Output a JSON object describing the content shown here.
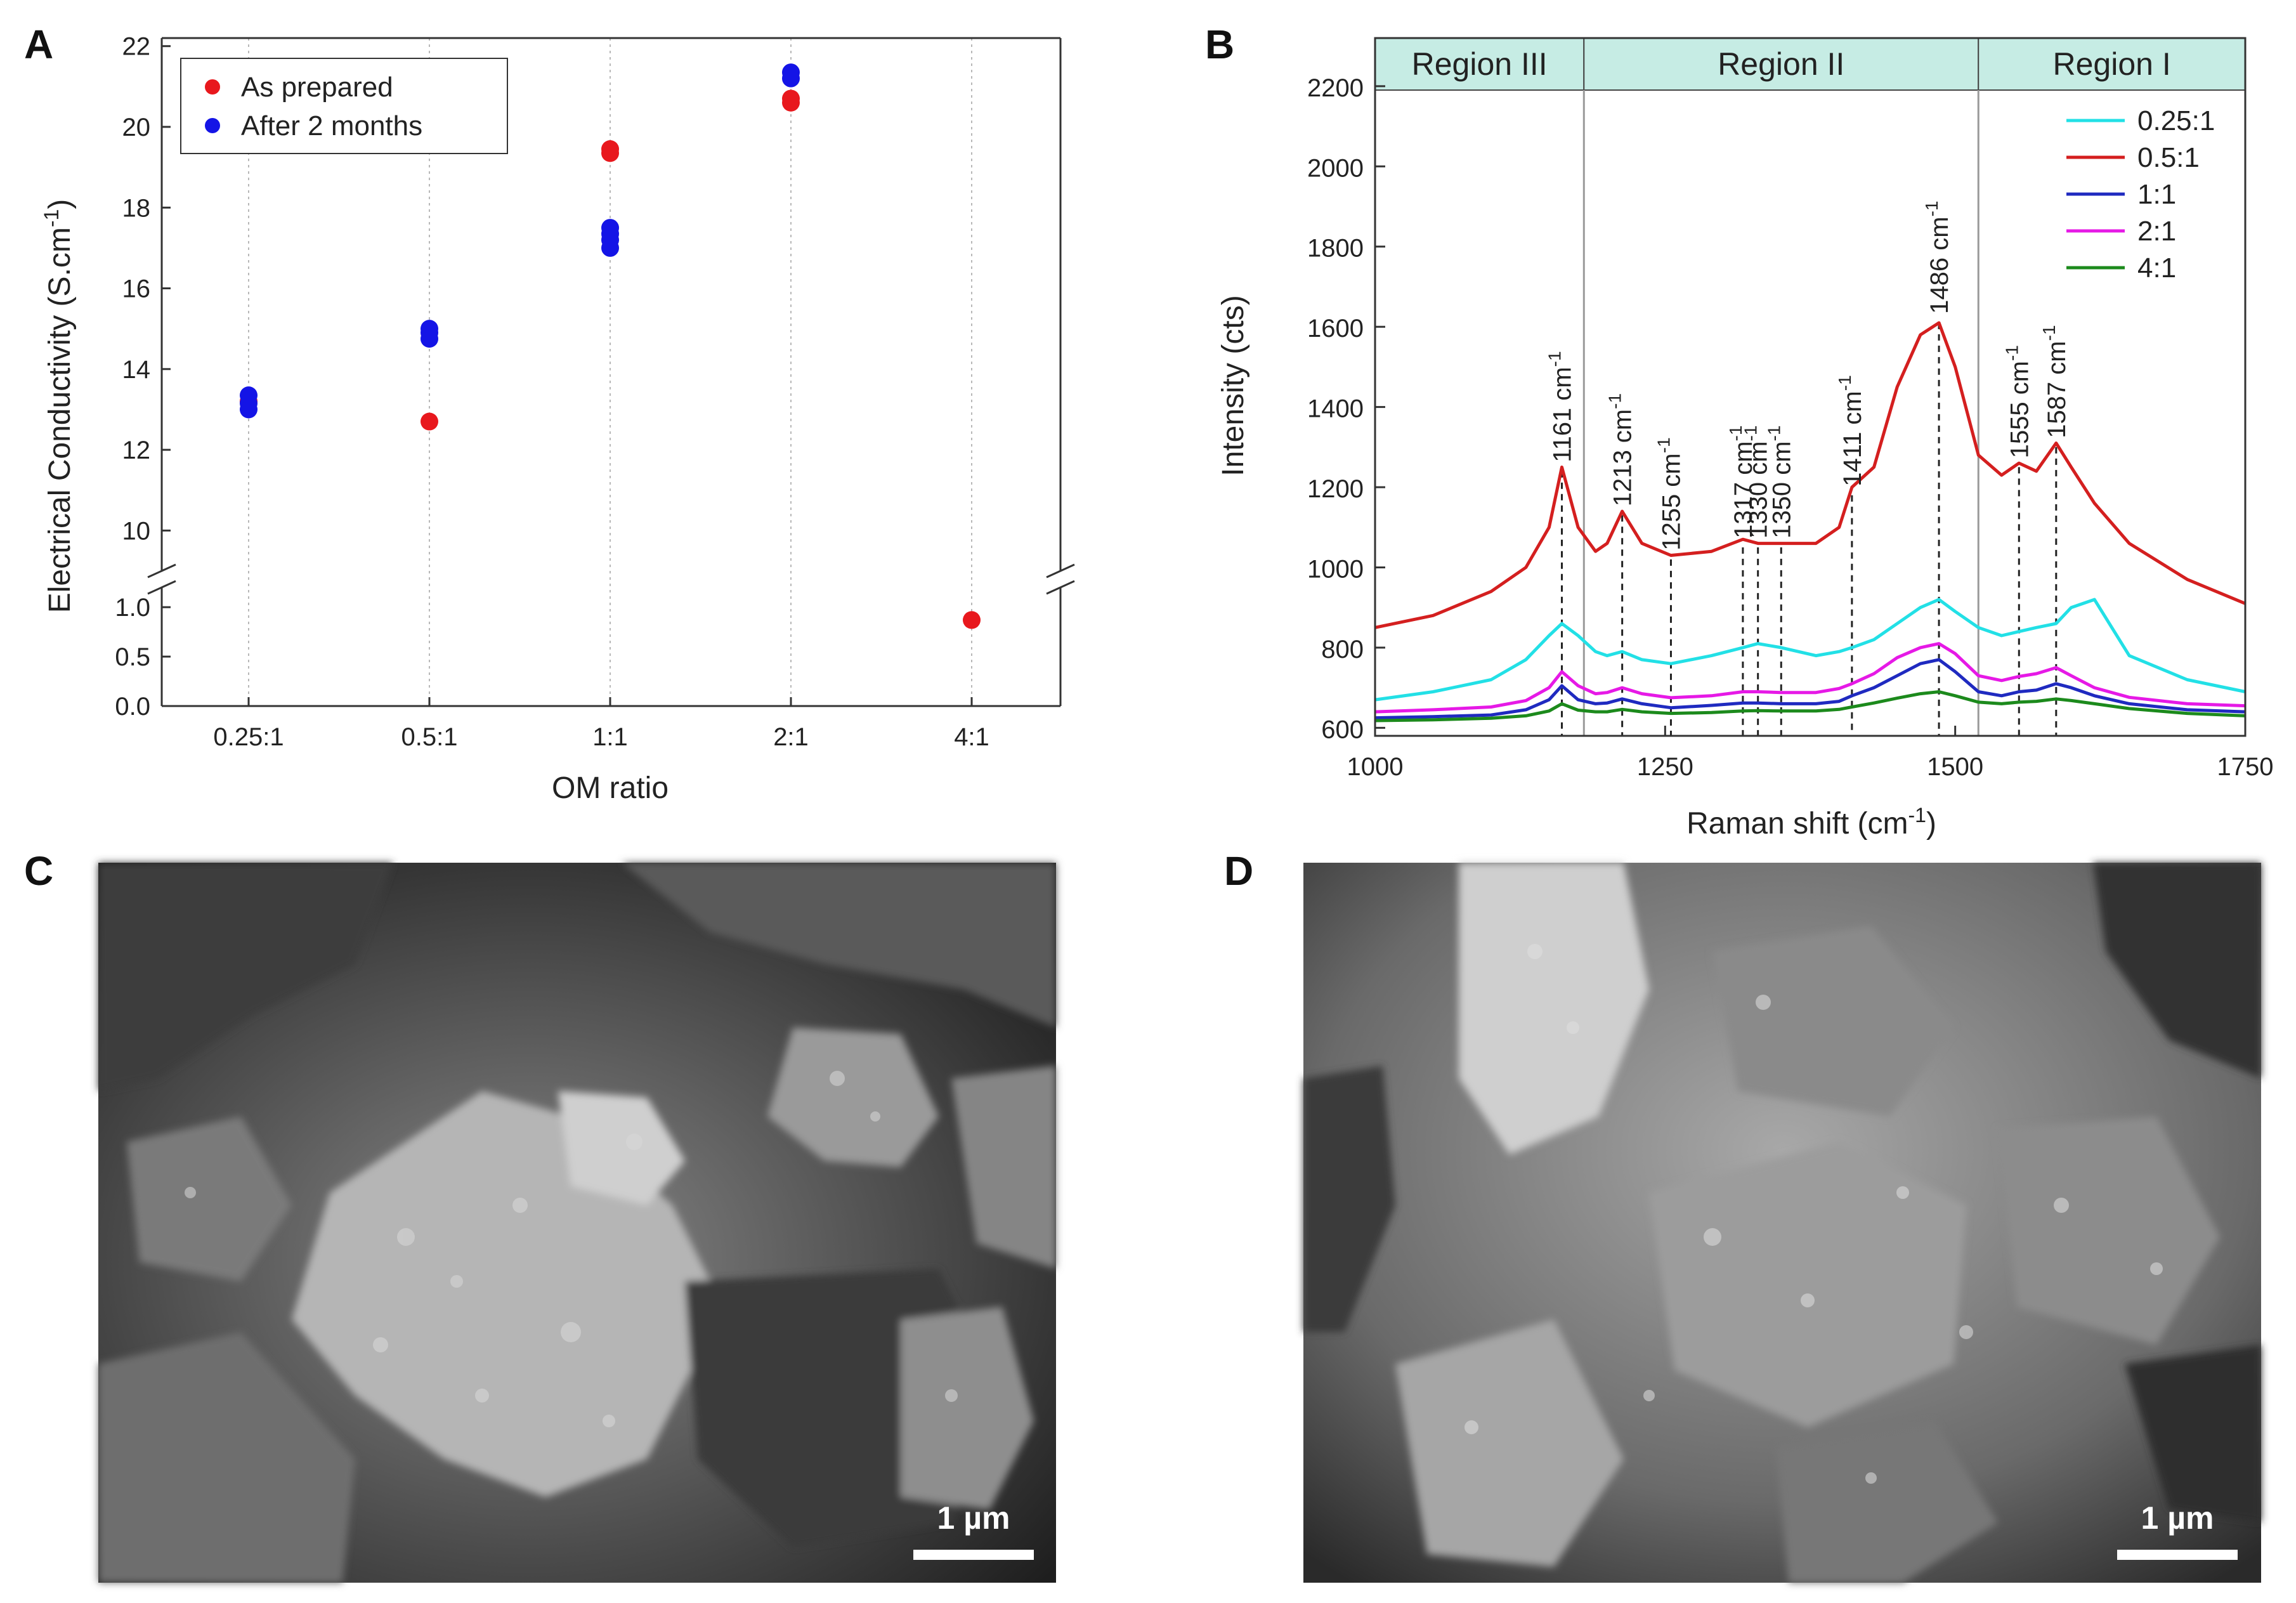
{
  "panel_letters": {
    "a": "A",
    "b": "B",
    "c": "C",
    "d": "D"
  },
  "chart_data": [
    {
      "id": "A",
      "type": "scatter",
      "title": "",
      "xlabel": "OM ratio",
      "ylabel": "Electrical Conductivity (S.cm",
      "ylabel_sup": "-1",
      "ylabel_end": ")",
      "categories": [
        "0.25:1",
        "0.5:1",
        "1:1",
        "2:1",
        "4:1"
      ],
      "ylim_upper": [
        9,
        22.2
      ],
      "ylim_lower": [
        0,
        1.2
      ],
      "yticks_upper": [
        "10",
        "12",
        "14",
        "16",
        "18",
        "20",
        "22"
      ],
      "yticks_lower": [
        "0.0",
        "0.5",
        "1.0"
      ],
      "grid": "vertical dotted at categories",
      "legend_position": "top-left",
      "series": [
        {
          "name": "As prepared",
          "color": "#e8181d",
          "points": [
            [
              0,
              13.2
            ],
            [
              1,
              12.7
            ],
            [
              2,
              19.35
            ],
            [
              2,
              19.45
            ],
            [
              3,
              20.6
            ],
            [
              3,
              20.7
            ],
            [
              4,
              0.87
            ]
          ]
        },
        {
          "name": "After 2 months",
          "color": "#1414e6",
          "points": [
            [
              0,
              13.0
            ],
            [
              0,
              13.15
            ],
            [
              0,
              13.35
            ],
            [
              1,
              14.75
            ],
            [
              1,
              14.9
            ],
            [
              1,
              15.0
            ],
            [
              2,
              17.0
            ],
            [
              2,
              17.2
            ],
            [
              2,
              17.35
            ],
            [
              2,
              17.5
            ],
            [
              3,
              21.2
            ],
            [
              3,
              21.35
            ]
          ]
        }
      ]
    },
    {
      "id": "B",
      "type": "line",
      "title": "",
      "xlabel": "Raman shift (cm",
      "xlabel_sup": "-1",
      "xlabel_end": ")",
      "ylabel": "Intensity (cts)",
      "xlim": [
        1000,
        1750
      ],
      "ylim": [
        580,
        2320
      ],
      "xticks": [
        1000,
        1250,
        1500,
        1750
      ],
      "yticks": [
        600,
        800,
        1000,
        1200,
        1400,
        1600,
        1800,
        2000,
        2200
      ],
      "legend_position": "top-right",
      "regions": [
        {
          "label": "Region III",
          "from": 1000,
          "to": 1180
        },
        {
          "label": "Region II",
          "from": 1180,
          "to": 1520
        },
        {
          "label": "Region I",
          "from": 1520,
          "to": 1750
        }
      ],
      "peaks": [
        {
          "pos": 1161,
          "label": "1161 cm",
          "sup": "-1"
        },
        {
          "pos": 1213,
          "label": "1213 cm",
          "sup": "-1"
        },
        {
          "pos": 1255,
          "label": "1255 cm",
          "sup": "-1"
        },
        {
          "pos": 1317,
          "label": "1317 cm",
          "sup": "-1"
        },
        {
          "pos": 1330,
          "label": "1330 cm",
          "sup": "-1"
        },
        {
          "pos": 1350,
          "label": "1350 cm",
          "sup": "-1"
        },
        {
          "pos": 1411,
          "label": "1411 cm",
          "sup": "-1"
        },
        {
          "pos": 1486,
          "label": "1486 cm",
          "sup": "-1"
        },
        {
          "pos": 1555,
          "label": "1555 cm",
          "sup": "-1"
        },
        {
          "pos": 1587,
          "label": "1587 cm",
          "sup": "-1"
        }
      ],
      "peak_line_tops": [
        1240,
        1130,
        1020,
        1050,
        1050,
        1050,
        1180,
        1610,
        1250,
        1300
      ],
      "x": [
        1000,
        1050,
        1100,
        1130,
        1150,
        1161,
        1175,
        1190,
        1200,
        1213,
        1230,
        1255,
        1290,
        1317,
        1330,
        1350,
        1380,
        1400,
        1411,
        1430,
        1450,
        1470,
        1486,
        1500,
        1520,
        1540,
        1555,
        1570,
        1587,
        1600,
        1620,
        1650,
        1700,
        1750
      ],
      "series": [
        {
          "name": "0.25:1",
          "color": "#22e0e6",
          "values": [
            670,
            690,
            720,
            770,
            830,
            860,
            830,
            790,
            780,
            790,
            770,
            760,
            780,
            800,
            810,
            800,
            780,
            790,
            800,
            820,
            860,
            900,
            920,
            890,
            850,
            830,
            840,
            850,
            860,
            900,
            920,
            780,
            720,
            690
          ]
        },
        {
          "name": "0.5:1",
          "color": "#d41f1f",
          "values": [
            850,
            880,
            940,
            1000,
            1100,
            1250,
            1100,
            1040,
            1060,
            1140,
            1060,
            1030,
            1040,
            1070,
            1060,
            1060,
            1060,
            1100,
            1200,
            1250,
            1450,
            1580,
            1610,
            1500,
            1280,
            1230,
            1260,
            1240,
            1310,
            1250,
            1160,
            1060,
            970,
            910
          ]
        },
        {
          "name": "1:1",
          "color": "#1f2ac0",
          "values": [
            625,
            628,
            632,
            645,
            670,
            705,
            670,
            660,
            662,
            672,
            660,
            650,
            656,
            662,
            662,
            660,
            660,
            666,
            680,
            700,
            730,
            760,
            770,
            740,
            690,
            680,
            690,
            694,
            710,
            700,
            680,
            660,
            645,
            640
          ]
        },
        {
          "name": "2:1",
          "color": "#e619e6",
          "values": [
            640,
            645,
            652,
            668,
            700,
            740,
            705,
            685,
            688,
            700,
            685,
            675,
            680,
            690,
            690,
            688,
            688,
            698,
            710,
            735,
            775,
            800,
            810,
            785,
            730,
            718,
            728,
            735,
            750,
            730,
            700,
            676,
            660,
            655
          ]
        },
        {
          "name": "4:1",
          "color": "#1c8a1c",
          "values": [
            618,
            620,
            624,
            630,
            642,
            660,
            644,
            640,
            640,
            646,
            640,
            636,
            638,
            642,
            643,
            642,
            642,
            646,
            652,
            662,
            674,
            685,
            690,
            680,
            664,
            660,
            664,
            666,
            672,
            668,
            660,
            648,
            636,
            630
          ]
        }
      ]
    }
  ],
  "micrographs": {
    "c": {
      "scale_label": "1 µm"
    },
    "d": {
      "scale_label": "1 µm"
    }
  },
  "colors": {
    "region_band": "#c6ece4",
    "sem_dark": "#2a2a2a",
    "sem_light": "#c9c9c9"
  }
}
